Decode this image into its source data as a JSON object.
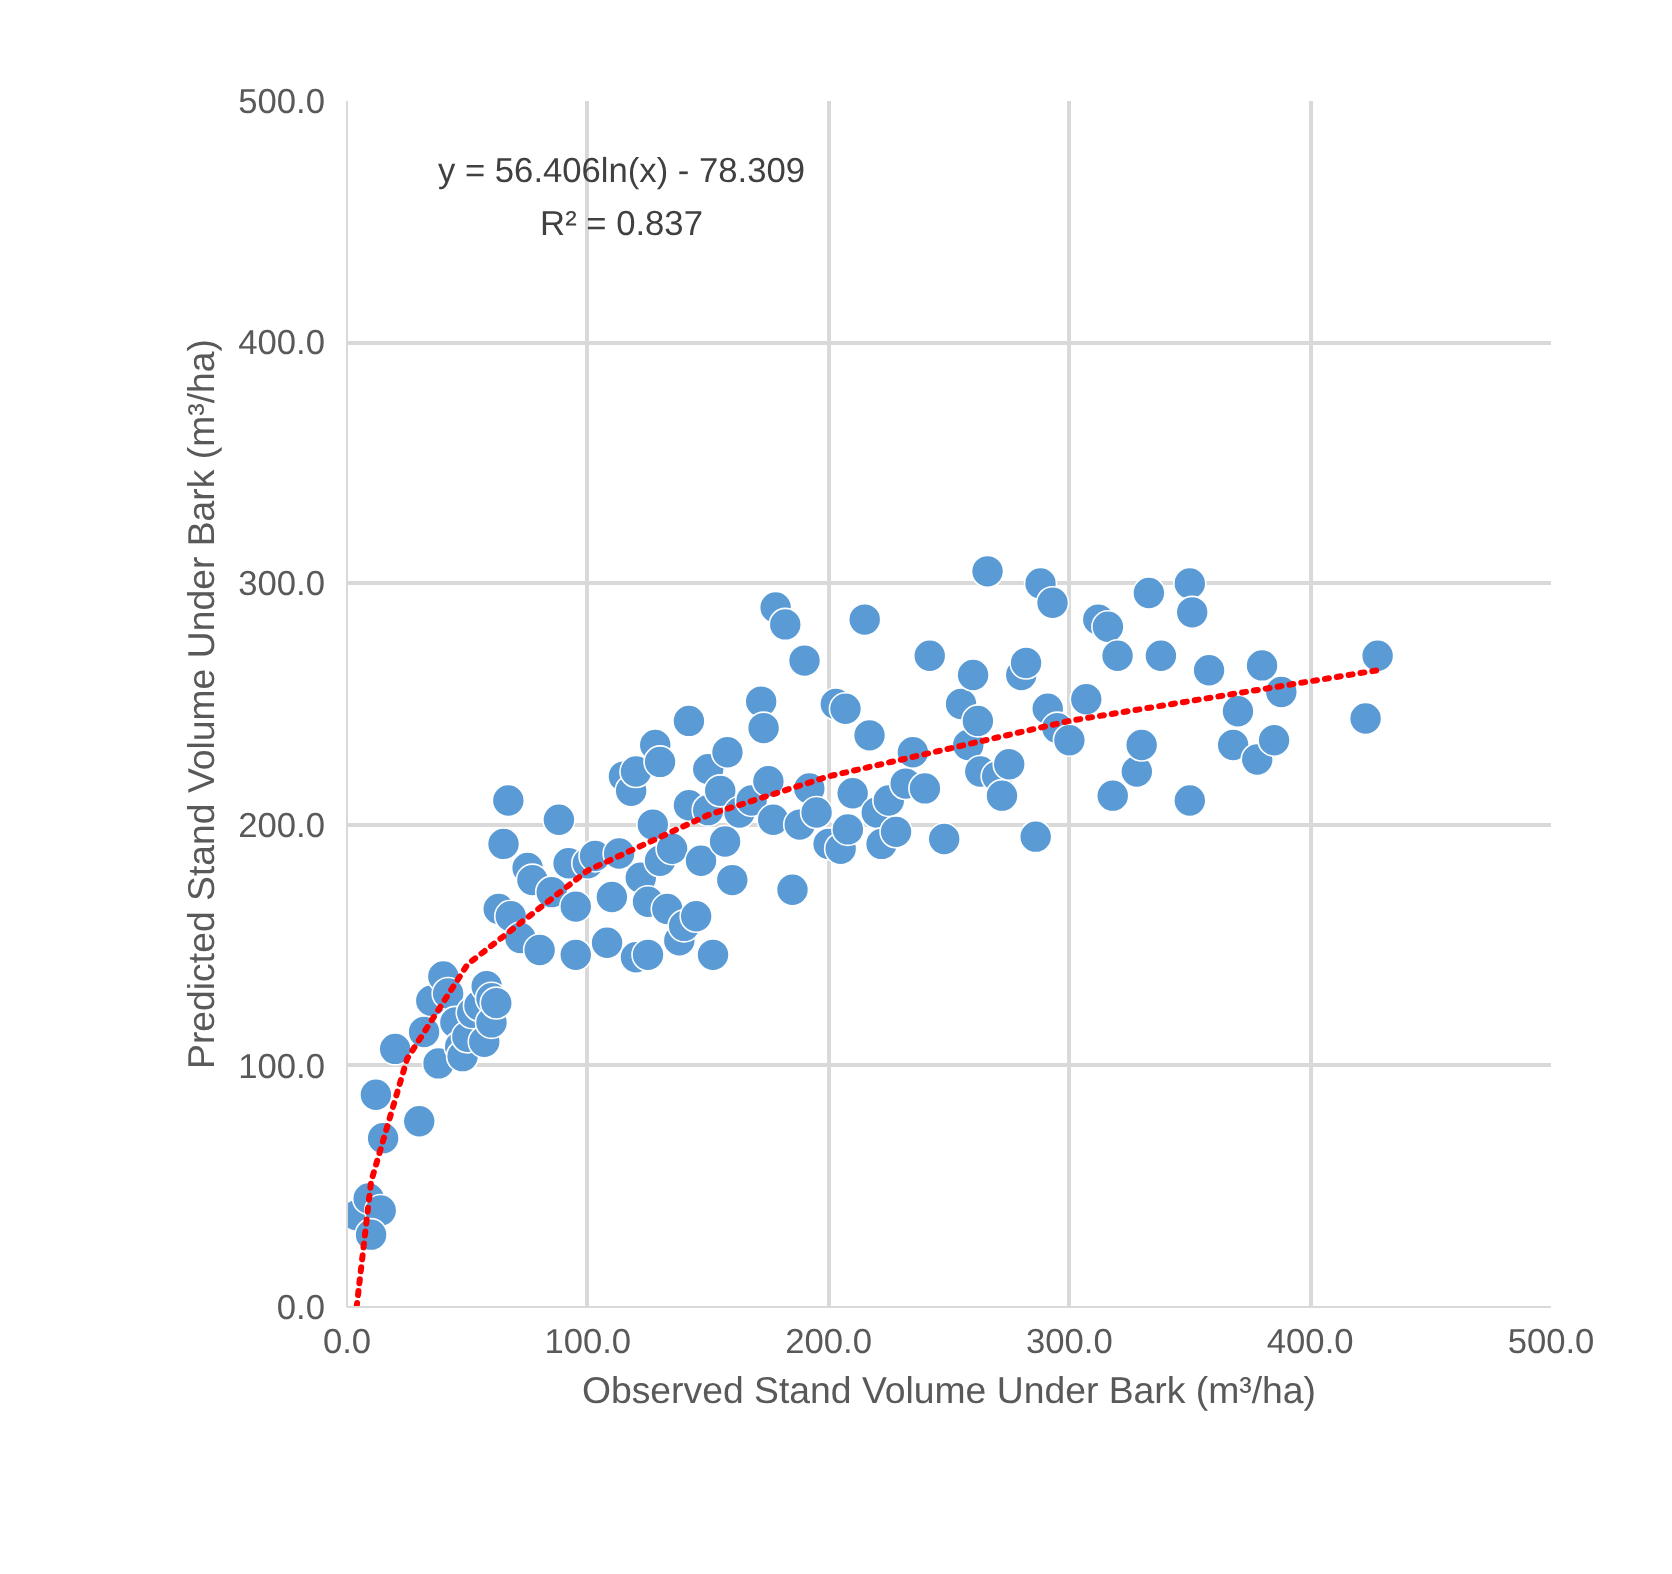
{
  "chart_data": {
    "type": "scatter",
    "xlabel": "Observed Stand Volume Under Bark (m³/ha)",
    "ylabel": "Predicted Stand Volume Under Bark (m³/ha)",
    "xlim": [
      0,
      500
    ],
    "ylim": [
      0,
      500
    ],
    "xticks": [
      {
        "value": 0,
        "label": "0.0"
      },
      {
        "value": 100,
        "label": "100.0"
      },
      {
        "value": 200,
        "label": "200.0"
      },
      {
        "value": 300,
        "label": "300.0"
      },
      {
        "value": 400,
        "label": "400.0"
      },
      {
        "value": 500,
        "label": "500.0"
      }
    ],
    "yticks": [
      {
        "value": 0,
        "label": "0.0"
      },
      {
        "value": 100,
        "label": "100.0"
      },
      {
        "value": 200,
        "label": "200.0"
      },
      {
        "value": 300,
        "label": "300.0"
      },
      {
        "value": 400,
        "label": "400.0"
      },
      {
        "value": 500,
        "label": "500.0"
      }
    ],
    "grid": true,
    "marker": "circle",
    "annotations": [
      "y = 56.406ln(x) - 78.309",
      "R² = 0.837"
    ],
    "series": [
      {
        "color": "#5b9bd5",
        "x": [
          4,
          9,
          14,
          10,
          12,
          15,
          20,
          30,
          32,
          35,
          38,
          40,
          42,
          45,
          47,
          48,
          50,
          52,
          55,
          57,
          58,
          60,
          60,
          62,
          63,
          65,
          67,
          68,
          72,
          75,
          77,
          80,
          85,
          88,
          92,
          95,
          95,
          100,
          103,
          108,
          110,
          113,
          115,
          118,
          120,
          120,
          122,
          125,
          125,
          127,
          128,
          130,
          130,
          133,
          135,
          138,
          140,
          142,
          142,
          145,
          147,
          150,
          150,
          152,
          155,
          157,
          158,
          160,
          163,
          168,
          172,
          173,
          175,
          177,
          178,
          182,
          185,
          188,
          190,
          192,
          195,
          200,
          203,
          205,
          207,
          208,
          210,
          215,
          217,
          220,
          222,
          225,
          228,
          232,
          235,
          240,
          242,
          248,
          255,
          258,
          260,
          262,
          263,
          266,
          270,
          272,
          275,
          280,
          282,
          286,
          288,
          291,
          293,
          295,
          300,
          307,
          312,
          316,
          318,
          320,
          328,
          330,
          333,
          338,
          350,
          351,
          350,
          358,
          368,
          370,
          378,
          380,
          385,
          388,
          423,
          428
        ],
        "values": [
          38,
          45,
          40,
          30,
          88,
          70,
          107,
          77,
          114,
          127,
          101,
          137,
          130,
          118,
          108,
          104,
          112,
          122,
          125,
          110,
          133,
          128,
          118,
          126,
          165,
          192,
          210,
          162,
          153,
          182,
          177,
          148,
          172,
          202,
          184,
          146,
          166,
          184,
          187,
          151,
          170,
          188,
          220,
          214,
          222,
          145,
          178,
          146,
          168,
          200,
          233,
          226,
          185,
          165,
          190,
          152,
          158,
          208,
          243,
          162,
          185,
          206,
          223,
          146,
          214,
          193,
          230,
          177,
          205,
          210,
          251,
          240,
          218,
          202,
          290,
          283,
          173,
          200,
          268,
          215,
          205,
          192,
          250,
          190,
          248,
          198,
          213,
          285,
          237,
          205,
          192,
          210,
          197,
          217,
          230,
          215,
          270,
          194,
          250,
          233,
          262,
          243,
          222,
          305,
          220,
          212,
          225,
          262,
          267,
          195,
          300,
          248,
          292,
          240,
          235,
          252,
          285,
          282,
          212,
          270,
          222,
          233,
          296,
          270,
          300,
          288,
          210,
          264,
          233,
          247,
          227,
          266,
          235,
          255,
          244,
          270
        ]
      },
      {
        "type": "line",
        "color": "#ff0000",
        "line_style": "dotted",
        "marker": "none",
        "x": [
          4,
          10,
          25,
          50,
          100,
          150,
          200,
          300,
          428
        ],
        "values": [
          0,
          52,
          103,
          142,
          181,
          204,
          220,
          243,
          264
        ]
      }
    ]
  }
}
